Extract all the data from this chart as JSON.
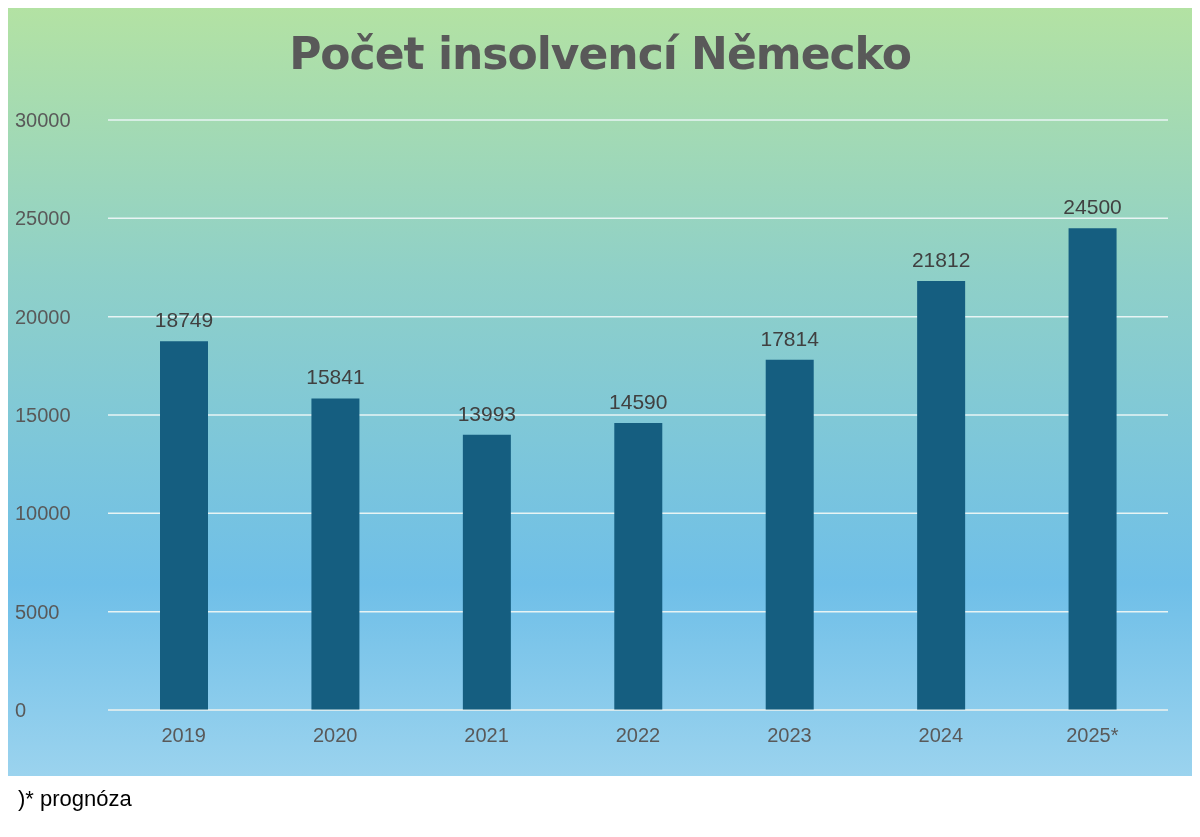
{
  "chart_data": {
    "type": "bar",
    "title": "Počet insolvencí Německo",
    "categories": [
      "2019",
      "2020",
      "2021",
      "2022",
      "2023",
      "2024",
      "2025*"
    ],
    "values": [
      18749,
      15841,
      13993,
      14590,
      17814,
      21812,
      24500
    ],
    "color": "#155e80",
    "ylim": [
      0,
      30000
    ],
    "yticks": [
      0,
      5000,
      10000,
      15000,
      20000,
      25000,
      30000
    ],
    "grid": "y",
    "data_labels": true,
    "annotations": [
      ")* prognóza"
    ]
  }
}
